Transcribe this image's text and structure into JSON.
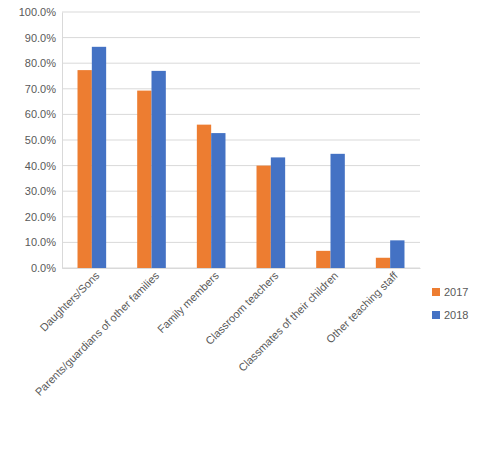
{
  "chart_data": {
    "type": "bar",
    "categories": [
      "Daughters/Sons",
      "Parents/guardians of other families",
      "Family members",
      "Classroom teachers",
      "Classmates of their children",
      "Other teaching staff"
    ],
    "series": [
      {
        "name": "2017",
        "color": "#ed7d31",
        "values": [
          77.3,
          69.3,
          56.0,
          40.0,
          6.7,
          4.0
        ]
      },
      {
        "name": "2018",
        "color": "#4472c4",
        "values": [
          86.4,
          77.0,
          52.7,
          43.2,
          44.6,
          10.8
        ]
      }
    ],
    "ylim": [
      0,
      100
    ],
    "yticks": [
      {
        "value": 0,
        "label": "0.0%"
      },
      {
        "value": 10,
        "label": "10.0%"
      },
      {
        "value": 20,
        "label": "20.0%"
      },
      {
        "value": 30,
        "label": "30.0%"
      },
      {
        "value": 40,
        "label": "40.0%"
      },
      {
        "value": 50,
        "label": "50.0%"
      },
      {
        "value": 60,
        "label": "60.0%"
      },
      {
        "value": 70,
        "label": "70.0%"
      },
      {
        "value": 80,
        "label": "80.0%"
      },
      {
        "value": 90,
        "label": "90.0%"
      },
      {
        "value": 100,
        "label": "100.0%"
      }
    ],
    "grid": true,
    "legend": "right"
  }
}
